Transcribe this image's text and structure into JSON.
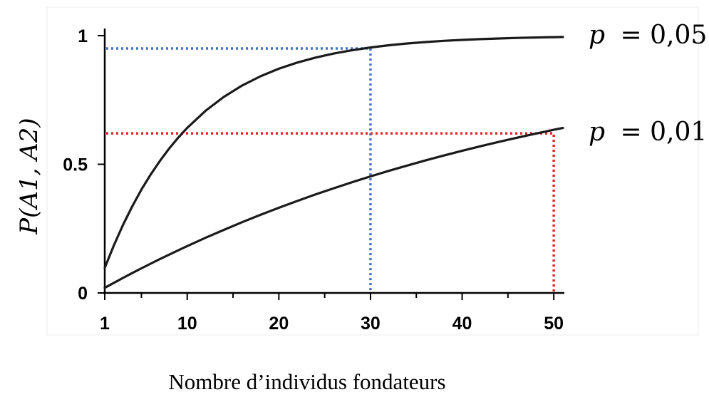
{
  "chart_data": {
    "type": "line",
    "title": "",
    "xlabel": "Nombre d’individus fondateurs",
    "ylabel": "P(A1, A2)",
    "xlim": [
      1,
      51
    ],
    "ylim": [
      0,
      1
    ],
    "x_ticks": [
      1,
      10,
      20,
      30,
      40,
      50
    ],
    "x_minor_ticks": [
      5,
      15,
      25,
      35,
      45
    ],
    "y_ticks": [
      {
        "value": 0,
        "label": "0"
      },
      {
        "value": 0.5,
        "label": "0.5"
      },
      {
        "value": 1,
        "label": "1"
      }
    ],
    "grid": false,
    "series": [
      {
        "label_var": "p",
        "label_value": "= 0,05",
        "formula": "1-(1-p)^(2n)",
        "p": 0.05,
        "x": [
          1,
          2,
          3,
          4,
          5,
          6,
          7,
          8,
          9,
          10,
          12,
          14,
          16,
          18,
          20,
          22,
          24,
          26,
          28,
          30,
          32,
          34,
          36,
          38,
          40,
          42,
          44,
          46,
          48,
          50,
          51
        ],
        "color": "#1a1a1a"
      },
      {
        "label_var": "p",
        "label_value": "= 0,01",
        "formula": "1-(1-p)^(2n)",
        "p": 0.01,
        "x": [
          1,
          2,
          3,
          4,
          5,
          6,
          7,
          8,
          9,
          10,
          12,
          14,
          16,
          18,
          20,
          22,
          24,
          26,
          28,
          30,
          32,
          34,
          36,
          38,
          40,
          42,
          44,
          46,
          48,
          50,
          51
        ],
        "color": "#1a1a1a"
      }
    ],
    "reference_lines": [
      {
        "x": 30,
        "y": 0.95,
        "color": "#4472c4",
        "style": "dotted"
      },
      {
        "x": 50,
        "y": 0.62,
        "color": "#e82323",
        "style": "dotted"
      }
    ]
  }
}
